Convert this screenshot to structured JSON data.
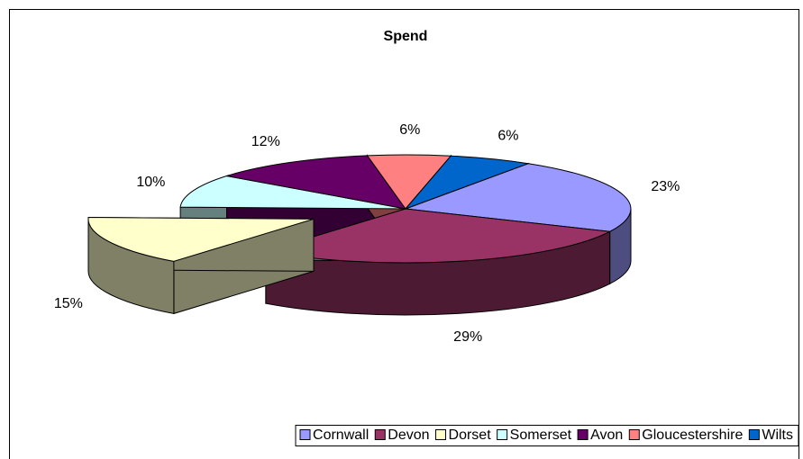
{
  "chart_data": {
    "type": "pie3d",
    "title": "Spend",
    "categories": [
      "Cornwall",
      "Devon",
      "Dorset",
      "Somerset",
      "Avon",
      "Gloucestershire",
      "Wilts"
    ],
    "values": [
      23,
      29,
      15,
      10,
      12,
      6,
      6
    ],
    "value_labels": [
      "23%",
      "29%",
      "15%",
      "10%",
      "12%",
      "6%",
      "6%"
    ],
    "colors": [
      "#9999ff",
      "#993366",
      "#ffffcc",
      "#ccffff",
      "#660066",
      "#ff8080",
      "#0066cc"
    ],
    "exploded": "Dorset",
    "legend": "bottom"
  }
}
